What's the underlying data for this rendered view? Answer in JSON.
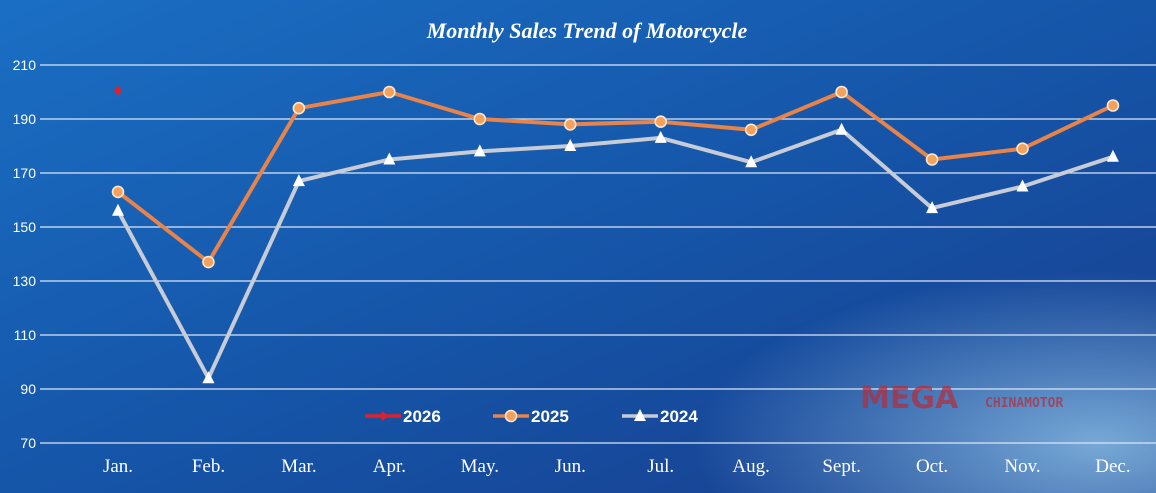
{
  "chart_data": {
    "type": "line",
    "title": "Monthly Sales Trend of Motorcycle",
    "categories": [
      "Jan.",
      "Feb.",
      "Mar.",
      "Apr.",
      "May.",
      "Jun.",
      "Jul.",
      "Aug.",
      "Sept.",
      "Oct.",
      "Nov.",
      "Dec."
    ],
    "ylim": [
      70,
      210
    ],
    "yticks": [
      70,
      90,
      110,
      130,
      150,
      170,
      190,
      210
    ],
    "grid": true,
    "legend": "bottom-center",
    "series": [
      {
        "name": "2026",
        "color": "#e0202a",
        "marker": "diamond",
        "values": [
          200.5,
          null,
          null,
          null,
          null,
          null,
          null,
          null,
          null,
          null,
          null,
          null
        ]
      },
      {
        "name": "2025",
        "color": "#e8834a",
        "marker": "circle",
        "values": [
          163,
          137,
          194,
          200,
          190,
          188,
          189,
          186,
          200,
          175,
          179,
          195
        ]
      },
      {
        "name": "2024",
        "color": "#c8ccd6",
        "marker": "triangle",
        "values": [
          156,
          94,
          167,
          175,
          178,
          180,
          183,
          174,
          186,
          157,
          165,
          176
        ]
      }
    ]
  },
  "watermark": {
    "main": "MEGA",
    "sub": "CHINAMOTOR"
  }
}
